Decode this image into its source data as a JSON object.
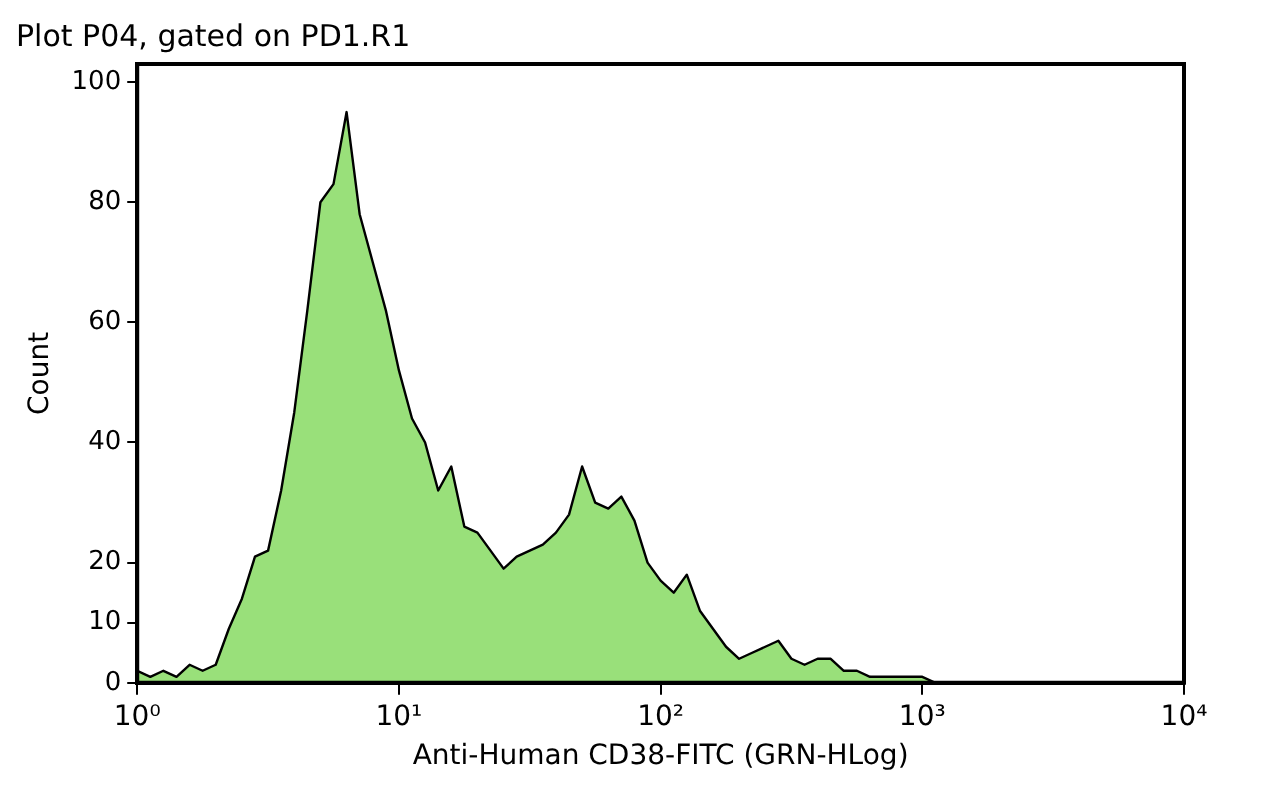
{
  "chart_data": {
    "type": "area",
    "title": "Plot P04, gated on PD1.R1",
    "xlabel": "Anti-Human CD38-FITC (GRN-HLog)",
    "ylabel": "Count",
    "log": "x",
    "grid": false,
    "legend": false,
    "color": "#99e07a",
    "x": [
      1,
      1.122,
      1.259,
      1.413,
      1.585,
      1.778,
      1.995,
      2.239,
      2.512,
      2.818,
      3.162,
      3.548,
      3.981,
      4.467,
      5.012,
      5.623,
      6.31,
      7.079,
      7.943,
      8.913,
      10,
      11.22,
      12.59,
      14.13,
      15.85,
      17.78,
      19.95,
      22.39,
      25.12,
      28.18,
      31.62,
      35.48,
      39.81,
      44.67,
      50.12,
      56.23,
      63.1,
      70.79,
      79.43,
      89.13,
      100,
      112.2,
      125.9,
      141.3,
      158.5,
      177.8,
      199.5,
      223.9,
      251.2,
      281.8,
      316.2,
      354.8,
      398.1,
      446.7,
      501.2,
      562.3,
      631,
      707.9,
      794.3,
      891.3,
      1000,
      1122,
      1259,
      1413
    ],
    "values": [
      2,
      1,
      2,
      1,
      3,
      2,
      3,
      9,
      14,
      21,
      22,
      32,
      45,
      62,
      80,
      83,
      95,
      78,
      70,
      62,
      52,
      44,
      40,
      32,
      36,
      26,
      25,
      22,
      19,
      21,
      22,
      23,
      25,
      28,
      36,
      30,
      29,
      31,
      27,
      20,
      17,
      15,
      18,
      12,
      9,
      6,
      4,
      5,
      6,
      7,
      4,
      3,
      4,
      4,
      2,
      2,
      1,
      1,
      1,
      1,
      1,
      0,
      0,
      0
    ],
    "xlim": [
      1,
      10000
    ],
    "xticks": [
      {
        "value": 1,
        "label": "10⁰"
      },
      {
        "value": 10,
        "label": "10¹"
      },
      {
        "value": 100,
        "label": "10²"
      },
      {
        "value": 1000,
        "label": "10³"
      },
      {
        "value": 10000,
        "label": "10⁴"
      }
    ],
    "ylim": [
      0,
      103
    ],
    "yticks": [
      0,
      10,
      20,
      40,
      60,
      80,
      100
    ]
  }
}
